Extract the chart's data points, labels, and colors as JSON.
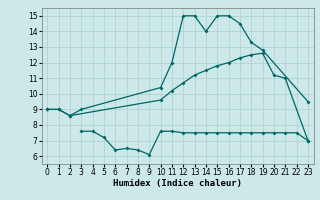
{
  "xlabel": "Humidex (Indice chaleur)",
  "xlim": [
    -0.5,
    23.5
  ],
  "ylim": [
    5.5,
    15.5
  ],
  "xticks": [
    0,
    1,
    2,
    3,
    4,
    5,
    6,
    7,
    8,
    9,
    10,
    11,
    12,
    13,
    14,
    15,
    16,
    17,
    18,
    19,
    20,
    21,
    22,
    23
  ],
  "yticks": [
    6,
    7,
    8,
    9,
    10,
    11,
    12,
    13,
    14,
    15
  ],
  "bg_color": "#cce8e8",
  "grid_color": "#aacfcf",
  "line_color": "#006666",
  "line1_x": [
    0,
    1,
    2,
    3,
    10,
    11,
    12,
    13,
    14,
    15,
    16,
    17,
    18,
    19,
    23
  ],
  "line1_y": [
    9.0,
    9.0,
    8.6,
    9.0,
    10.4,
    12.0,
    15.0,
    15.0,
    14.0,
    15.0,
    15.0,
    14.5,
    13.3,
    12.8,
    9.5
  ],
  "line2_x": [
    0,
    1,
    2,
    10,
    11,
    12,
    13,
    14,
    15,
    16,
    17,
    18,
    19,
    20,
    21,
    23
  ],
  "line2_y": [
    9.0,
    9.0,
    8.6,
    9.6,
    10.2,
    10.7,
    11.2,
    11.5,
    11.8,
    12.0,
    12.3,
    12.5,
    12.6,
    11.2,
    11.0,
    7.0
  ],
  "line3_x": [
    3,
    4,
    5,
    6,
    7,
    8,
    9,
    10,
    11,
    12,
    13,
    14,
    15,
    16,
    17,
    18,
    19,
    20,
    21,
    22,
    23
  ],
  "line3_y": [
    7.6,
    7.6,
    7.2,
    6.4,
    6.5,
    6.4,
    6.1,
    7.6,
    7.6,
    7.5,
    7.5,
    7.5,
    7.5,
    7.5,
    7.5,
    7.5,
    7.5,
    7.5,
    7.5,
    7.5,
    7.0
  ],
  "axis_fontsize": 6.5,
  "tick_fontsize": 5.5,
  "lw": 0.9,
  "ms": 2.0
}
